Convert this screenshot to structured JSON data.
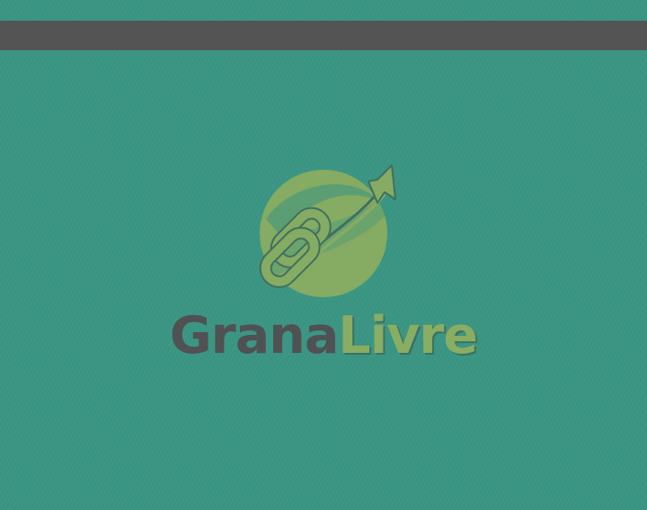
{
  "brand": {
    "name_part_1": "Grana",
    "name_part_2": "Livre"
  },
  "colors": {
    "background": "#3a9482",
    "top_bar": "#545454",
    "logo_green": "#86ab62",
    "logo_dark_outline": "#3f7060",
    "wordmark_gray": "#4f5152",
    "wordmark_green": "#88ad63"
  },
  "icons": {
    "logo": "chain-link-coin-with-up-arrow-icon"
  }
}
